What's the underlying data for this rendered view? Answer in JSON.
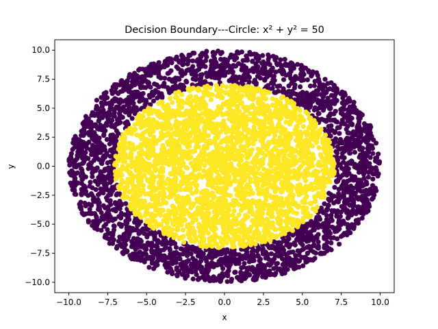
{
  "chart_data": {
    "type": "scatter",
    "title": "Decision Boundary---Circle: x² + y² = 50",
    "xlabel": "x",
    "ylabel": "y",
    "xlim": [
      -10.9,
      10.9
    ],
    "ylim": [
      -10.9,
      10.9
    ],
    "xticks": [
      -10.0,
      -7.5,
      -5.0,
      -2.5,
      0.0,
      2.5,
      5.0,
      7.5,
      10.0
    ],
    "yticks": [
      -10.0,
      -7.5,
      -5.0,
      -2.5,
      0.0,
      2.5,
      5.0,
      7.5,
      10.0
    ],
    "xtick_labels": [
      "−10.0",
      "−7.5",
      "−5.0",
      "−2.5",
      "0.0",
      "2.5",
      "5.0",
      "7.5",
      "10.0"
    ],
    "ytick_labels": [
      "−10.0",
      "−7.5",
      "−5.0",
      "−2.5",
      "0.0",
      "2.5",
      "5.0",
      "7.5",
      "10.0"
    ],
    "grid": false,
    "legend": false,
    "series": [
      {
        "region": "outer ring",
        "condition": "x² + y² > 50",
        "r_min": 7.07,
        "r_max": 10.0,
        "color": "#440154"
      },
      {
        "region": "inner disk",
        "condition": "x² + y² ≤ 50",
        "r_min": 0,
        "r_max": 7.07,
        "color": "#fde725"
      }
    ]
  }
}
